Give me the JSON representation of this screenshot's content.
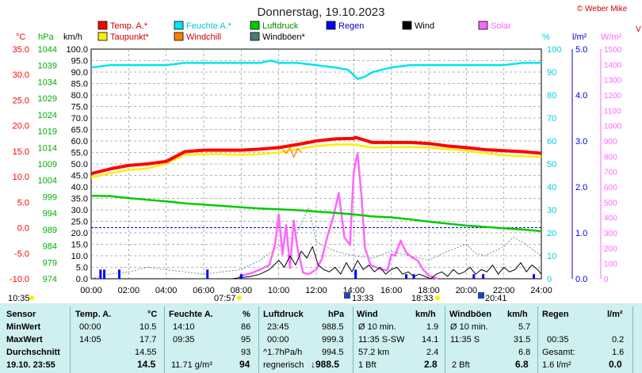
{
  "header": {
    "title": "Donnerstag, 19.10.2023",
    "copyright": "© Weber Mike",
    "edge_label": "V"
  },
  "legend": [
    {
      "label": "Temp. A.*",
      "color": "#ff0000"
    },
    {
      "label": "Feuchte A.*",
      "color": "#00e5ee"
    },
    {
      "label": "Luftdruck",
      "color": "#00cc00"
    },
    {
      "label": "Regen",
      "color": "#0000ff"
    },
    {
      "label": "Wind",
      "color": "#000000"
    },
    {
      "label": "Solar",
      "color": "#ff66ff"
    },
    {
      "label": "Taupunkt*",
      "color": "#ffee00"
    },
    {
      "label": "Windchill",
      "color": "#ff8000"
    },
    {
      "label": "Windböen*",
      "color": "#4a7a7a"
    }
  ],
  "axis_units": {
    "temp": "°C",
    "pressure": "hPa",
    "wind": "km/h",
    "humidity": "%",
    "rain": "l/m²",
    "solar": "W/m²"
  },
  "axis_ticks": {
    "temp": [
      "35.0",
      "30.0",
      "25.0",
      "20.0",
      "15.0",
      "10.0",
      "5.0",
      "0.0",
      "-5.0",
      "-10.0"
    ],
    "pressure": [
      "1044",
      "1039",
      "1034",
      "1029",
      "1024",
      "1019",
      "1014",
      "1009",
      "1004",
      "999",
      "994",
      "989",
      "984",
      "979",
      "974"
    ],
    "wind": [
      "100.0",
      "95.0",
      "90.0",
      "85.0",
      "80.0",
      "75.0",
      "70.0",
      "65.0",
      "60.0",
      "55.0",
      "50.0",
      "45.0",
      "40.0",
      "35.0",
      "30.0",
      "25.0",
      "20.0",
      "15.0",
      "10.0",
      "5.0",
      "0.0"
    ],
    "humidity": [
      "100",
      "90",
      "80",
      "70",
      "60",
      "50",
      "40",
      "30",
      "20",
      "10",
      "0"
    ],
    "rain": [
      "5.0",
      "4.0",
      "3.0",
      "2.0",
      "1.0",
      "0.0"
    ],
    "solar": [
      "1500",
      "1400",
      "1300",
      "1200",
      "1100",
      "1000",
      "900",
      "800",
      "700",
      "600",
      "500",
      "400",
      "300",
      "200",
      "100",
      "0"
    ],
    "time": [
      "00:00",
      "02:00",
      "04:00",
      "06:00",
      "08:00",
      "10:00",
      "12:00",
      "14:00",
      "16:00",
      "18:00",
      "20:00",
      "22:00",
      "24:00"
    ]
  },
  "sun_moon": [
    {
      "label": "10:35",
      "type": "moonrise"
    },
    {
      "label": "07:57",
      "type": "sunrise"
    },
    {
      "label": "13:33",
      "type": "max"
    },
    {
      "label": "18:33",
      "type": "sunset"
    },
    {
      "label": "20:41",
      "type": "moonset"
    }
  ],
  "table": {
    "col1": {
      "header": "Sensor",
      "rows": [
        "MinWert",
        "MaxWert",
        "Durchschnitt",
        "19.10. 23:55"
      ]
    },
    "temp": {
      "header": "Temp. A.",
      "unit": "°C",
      "rows": [
        [
          "00:00",
          "10.5"
        ],
        [
          "14:05",
          "17.7"
        ],
        [
          "",
          "14.55"
        ],
        [
          "",
          "14.5"
        ]
      ]
    },
    "hum": {
      "header": "Feuchte A.",
      "unit": "%",
      "rows": [
        [
          "14:10",
          "86"
        ],
        [
          "09:35",
          "95"
        ],
        [
          "",
          "93"
        ],
        [
          "11.71 g/m³",
          "94"
        ]
      ]
    },
    "press": {
      "header": "Luftdruck",
      "unit": "hPa",
      "rows": [
        [
          "23:45",
          "988.5"
        ],
        [
          "00:00",
          "999.3"
        ],
        [
          "^1.7hPa/h",
          "994.5"
        ],
        [
          "regnerisch",
          "↓988.5"
        ]
      ]
    },
    "wind": {
      "header": "Wind",
      "unit": "km/h",
      "rows": [
        [
          "Ø 10 min.",
          "1.9"
        ],
        [
          "11:35  S-SW",
          "14.1"
        ],
        [
          "57.2 km",
          "2.4"
        ],
        [
          "1 Bft",
          "2.8"
        ]
      ]
    },
    "gust": {
      "header": "Windböen",
      "unit": "km/h",
      "rows": [
        [
          "Ø 10 min.",
          "5.7"
        ],
        [
          "11:35  S",
          "31.5"
        ],
        [
          "",
          "6.8"
        ],
        [
          "2 Bft",
          "6.8"
        ]
      ]
    },
    "rain": {
      "header": "Regen",
      "unit": "l/m²",
      "rows": [
        [
          "",
          ""
        ],
        [
          "00:35",
          "0.2"
        ],
        [
          "Gesamt:",
          "1.6"
        ],
        [
          "1.6 l/m²",
          "0.0"
        ]
      ]
    }
  },
  "chart_data": {
    "type": "line",
    "title": "Donnerstag, 19.10.2023",
    "x_unit": "hours",
    "xlim": [
      0,
      24
    ],
    "grid": true,
    "legend_position": "top",
    "axes": {
      "temp_c": [
        -10,
        35
      ],
      "pressure_hpa": [
        974,
        1044
      ],
      "wind_kmh": [
        0,
        100
      ],
      "humidity_pct": [
        0,
        100
      ],
      "rain_lm2": [
        0,
        5
      ],
      "solar_wm2": [
        0,
        1500
      ]
    },
    "series": [
      {
        "name": "Temp. A.*",
        "axis": "temp_c",
        "x": [
          0,
          1,
          2,
          3,
          4,
          5,
          6,
          7,
          8,
          9,
          10,
          11,
          12,
          13,
          14,
          14.1,
          15,
          16,
          17,
          18,
          19,
          20,
          21,
          22,
          23,
          24
        ],
        "y": [
          10.6,
          11.5,
          12.2,
          12.5,
          13,
          14.9,
          15.2,
          15.2,
          15.2,
          15.4,
          15.7,
          16.3,
          17,
          17.4,
          17.5,
          17.7,
          16.7,
          16.7,
          16.7,
          16.5,
          16,
          15.7,
          15.3,
          15.1,
          14.9,
          14.6
        ]
      },
      {
        "name": "Taupunkt*",
        "axis": "temp_c",
        "x": [
          0,
          1,
          2,
          3,
          4,
          5,
          6,
          7,
          8,
          9,
          10,
          11,
          12,
          13,
          14,
          15,
          16,
          17,
          18,
          19,
          20,
          21,
          22,
          23,
          24
        ],
        "y": [
          9.8,
          10.7,
          11.3,
          11.6,
          12.6,
          14.3,
          14.4,
          14.4,
          14.3,
          14.4,
          14.7,
          15.4,
          16,
          16.3,
          16.3,
          15.7,
          15.8,
          15.8,
          15.7,
          15.4,
          15.1,
          14.6,
          14.2,
          14,
          13.9
        ]
      },
      {
        "name": "Feuchte A.*",
        "axis": "humidity_pct",
        "x": [
          0,
          1,
          2,
          3,
          4,
          5,
          6,
          7,
          8,
          9,
          9.6,
          10,
          11,
          12,
          13,
          13.7,
          14.2,
          14.6,
          15,
          16,
          17,
          18,
          19,
          20,
          21,
          22,
          23,
          24
        ],
        "y": [
          92,
          93,
          93,
          93,
          93,
          94,
          94,
          94,
          94,
          94,
          95,
          94,
          94,
          93,
          92,
          91,
          87,
          88,
          90,
          92,
          93,
          93,
          93,
          93,
          93,
          93,
          94,
          94
        ]
      },
      {
        "name": "Luftdruck",
        "axis": "pressure_hpa",
        "x": [
          0,
          1,
          2,
          3,
          4,
          5,
          6,
          7,
          8,
          9,
          10,
          11,
          12,
          13,
          14,
          15,
          16,
          17,
          18,
          19,
          20,
          21,
          22,
          23,
          24
        ],
        "y": [
          999.3,
          999.2,
          998.6,
          998.1,
          997.6,
          997,
          996.6,
          996.2,
          995.8,
          995.4,
          995.2,
          994.9,
          994.5,
          994.1,
          993.6,
          993,
          992.7,
          992.1,
          991.4,
          990.8,
          990.2,
          989.8,
          989.4,
          989,
          988.5
        ]
      },
      {
        "name": "Windchill",
        "axis": "temp_c",
        "x": [
          10.2,
          10.4,
          10.6,
          10.8,
          11,
          11.2
        ],
        "y": [
          15.4,
          14.5,
          15.8,
          13.8,
          15.5,
          14.8
        ]
      },
      {
        "name": "Wind",
        "axis": "wind_kmh",
        "x": [
          0,
          7.5,
          8.5,
          9,
          9.5,
          10,
          10.3,
          10.6,
          10.9,
          11.2,
          11.5,
          11.8,
          12.1,
          12.4,
          12.7,
          13,
          13.3,
          13.6,
          13.9,
          14.2,
          14.5,
          14.8,
          15.1,
          15.4,
          15.7,
          16,
          16.3,
          16.6,
          16.9,
          17.2,
          17.5,
          17.8,
          18.1,
          18.4,
          18.7,
          19,
          19.3,
          19.6,
          19.9,
          20.2,
          20.5,
          20.8,
          21.1,
          21.4,
          21.7,
          22,
          22.3,
          22.6,
          22.9,
          23.2,
          23.5,
          23.8,
          24
        ],
        "y": [
          0,
          0,
          1,
          2,
          4,
          8,
          5,
          10,
          6,
          12,
          9,
          14,
          6,
          4,
          3,
          5,
          2,
          7,
          3,
          8,
          4,
          6,
          3,
          5,
          2,
          4,
          5,
          2,
          3,
          1,
          2,
          1,
          0,
          2,
          3,
          1,
          4,
          2,
          3,
          5,
          2,
          4,
          3,
          6,
          2,
          5,
          3,
          4,
          7,
          3,
          6,
          4,
          2
        ]
      },
      {
        "name": "Windböen*",
        "axis": "wind_kmh",
        "x": [
          0,
          1,
          2,
          3,
          4,
          5,
          6,
          7,
          8,
          9,
          10,
          11,
          11.6,
          12,
          13,
          14,
          15,
          16,
          17,
          18,
          19,
          20,
          20.5,
          21,
          22,
          22.5,
          23,
          24
        ],
        "y": [
          0,
          2,
          3,
          5,
          4,
          3,
          2,
          3,
          4,
          8,
          14,
          20,
          31,
          16,
          12,
          10,
          9,
          12,
          10,
          8,
          12,
          15,
          11,
          10,
          14,
          18,
          16,
          10
        ]
      },
      {
        "name": "Solar",
        "axis": "solar_wm2",
        "x": [
          7.8,
          8,
          8.5,
          9,
          9.5,
          9.8,
          10,
          10.2,
          10.4,
          10.6,
          10.8,
          11,
          11.3,
          11.6,
          12,
          12.3,
          12.6,
          12.9,
          13.2,
          13.5,
          13.8,
          14,
          14.2,
          14.4,
          14.6,
          14.9,
          15.2,
          15.5,
          15.8,
          16,
          16.2,
          16.5,
          16.8,
          17.1,
          17.4,
          17.7,
          18,
          18.5
        ],
        "y": [
          0,
          20,
          35,
          60,
          90,
          220,
          420,
          160,
          350,
          70,
          380,
          200,
          40,
          30,
          60,
          130,
          280,
          400,
          560,
          270,
          220,
          700,
          820,
          560,
          200,
          90,
          75,
          60,
          55,
          160,
          150,
          250,
          170,
          140,
          120,
          60,
          20,
          0
        ]
      },
      {
        "name": "Regen",
        "axis": "rain_lm2",
        "type": "bar",
        "x": [
          0.5,
          0.7,
          1.5,
          6.2,
          8,
          14.1,
          16.8,
          17.2,
          20.4,
          20.9,
          23.6
        ],
        "values": [
          0.2,
          0.2,
          0.2,
          0.2,
          0.1,
          0.2,
          0.1,
          0.1,
          0.1,
          0.1,
          0.1
        ]
      }
    ]
  }
}
